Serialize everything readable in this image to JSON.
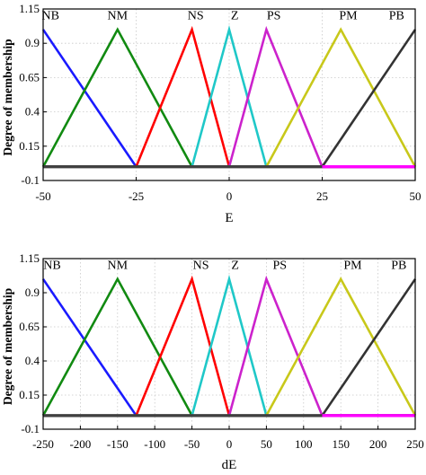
{
  "chart_data": [
    {
      "type": "line",
      "xlabel": "E",
      "ylabel": "Degree of membership",
      "xlim": [
        -50,
        50
      ],
      "ylim": [
        -0.1,
        1.15
      ],
      "xticks": [
        -50,
        -25,
        0,
        25,
        50
      ],
      "xtick_labels": [
        "-50",
        "-25",
        "0",
        "25",
        "50"
      ],
      "yticks": [
        -0.1,
        0.15,
        0.4,
        0.65,
        0.9,
        1.15
      ],
      "ytick_labels": [
        "-0.1",
        "0.15",
        "0.4",
        "0.65",
        "0.9",
        "1.15"
      ],
      "grid": true,
      "baseline": {
        "y": 0,
        "color": "#404040"
      },
      "series": [
        {
          "name": "NB",
          "color": "#1a1aff",
          "x": [
            -50,
            -25
          ],
          "y": [
            1,
            0
          ],
          "label_at": -48
        },
        {
          "name": "NM",
          "color": "#118a11",
          "x": [
            -50,
            -30,
            -10
          ],
          "y": [
            0,
            1,
            0
          ],
          "label_at": -30
        },
        {
          "name": "NS",
          "color": "#ff0000",
          "x": [
            -25,
            -10,
            0
          ],
          "y": [
            0,
            1,
            0
          ],
          "label_at": -9
        },
        {
          "name": "Z",
          "color": "#1fc8c8",
          "x": [
            -10,
            0,
            10
          ],
          "y": [
            0,
            1,
            0
          ],
          "label_at": 1.5
        },
        {
          "name": "PS",
          "color": "#cc22cc",
          "x": [
            0,
            10,
            25
          ],
          "y": [
            0,
            1,
            0
          ],
          "label_at": 12
        },
        {
          "name": "PM",
          "color": "#c8c81a",
          "x": [
            10,
            30,
            50
          ],
          "y": [
            0,
            1,
            0
          ],
          "label_at": 32
        },
        {
          "name": "PB",
          "color": "#333333",
          "x": [
            25,
            50
          ],
          "y": [
            0,
            1
          ],
          "label_at": 45
        }
      ],
      "extra_segments": [
        {
          "color": "#ff00ff",
          "x": [
            25,
            50
          ],
          "y": [
            0,
            0
          ]
        }
      ]
    },
    {
      "type": "line",
      "xlabel": "dE",
      "ylabel": "Degree of membership",
      "xlim": [
        -250,
        250
      ],
      "ylim": [
        -0.1,
        1.15
      ],
      "xticks": [
        -250,
        -200,
        -150,
        -100,
        -50,
        0,
        50,
        100,
        150,
        200,
        250
      ],
      "xtick_labels": [
        "-250",
        "-200",
        "-150",
        "-100",
        "-50",
        "0",
        "50",
        "100",
        "150",
        "200",
        "250"
      ],
      "yticks": [
        -0.1,
        0.15,
        0.4,
        0.65,
        0.9,
        1.15
      ],
      "ytick_labels": [
        "-0.1",
        "0.15",
        "0.4",
        "0.65",
        "0.9",
        "1.15"
      ],
      "grid": true,
      "baseline": {
        "y": 0,
        "color": "#404040"
      },
      "series": [
        {
          "name": "NB",
          "color": "#1a1aff",
          "x": [
            -250,
            -125
          ],
          "y": [
            1,
            0
          ],
          "label_at": -238
        },
        {
          "name": "NM",
          "color": "#118a11",
          "x": [
            -250,
            -150,
            -50
          ],
          "y": [
            0,
            1,
            0
          ],
          "label_at": -150
        },
        {
          "name": "NS",
          "color": "#ff0000",
          "x": [
            -125,
            -50,
            0
          ],
          "y": [
            0,
            1,
            0
          ],
          "label_at": -38
        },
        {
          "name": "Z",
          "color": "#1fc8c8",
          "x": [
            -50,
            0,
            50
          ],
          "y": [
            0,
            1,
            0
          ],
          "label_at": 8
        },
        {
          "name": "PS",
          "color": "#cc22cc",
          "x": [
            0,
            50,
            125
          ],
          "y": [
            0,
            1,
            0
          ],
          "label_at": 68
        },
        {
          "name": "PM",
          "color": "#c8c81a",
          "x": [
            50,
            150,
            250
          ],
          "y": [
            0,
            1,
            0
          ],
          "label_at": 166
        },
        {
          "name": "PB",
          "color": "#333333",
          "x": [
            125,
            250
          ],
          "y": [
            0,
            1
          ],
          "label_at": 228
        }
      ],
      "extra_segments": [
        {
          "color": "#ff00ff",
          "x": [
            125,
            250
          ],
          "y": [
            0,
            0
          ]
        }
      ]
    }
  ]
}
